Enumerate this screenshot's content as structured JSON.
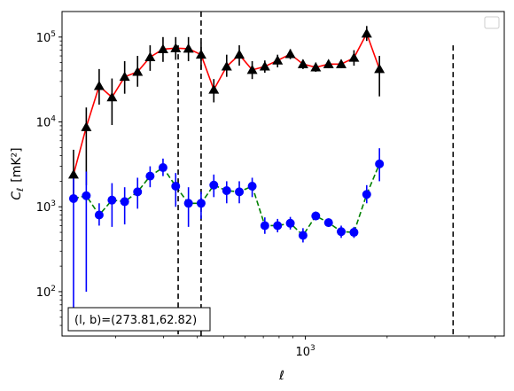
{
  "chart_data": {
    "type": "line",
    "xscale": "log",
    "yscale": "log",
    "xlabel": "ℓ",
    "ylabel_main": "C",
    "ylabel_sub": "ℓ",
    "ylabel_unit": "[mK²]",
    "xlim": [
      127,
      5400
    ],
    "ylim": [
      30,
      200000
    ],
    "x_ticks": [
      {
        "value": 1000,
        "base": "10",
        "exp": "3"
      }
    ],
    "y_ticks": [
      {
        "value": 100,
        "base": "10",
        "exp": "2"
      },
      {
        "value": 1000,
        "base": "10",
        "exp": "3"
      },
      {
        "value": 10000,
        "base": "10",
        "exp": "4"
      },
      {
        "value": 100000,
        "base": "10",
        "exp": "5"
      }
    ],
    "legend_position": "upper right",
    "legend_entries": [],
    "annotation": "(l, b)=(273.81,62.82)",
    "vlines": [
      {
        "x": 340,
        "ymin": 30,
        "ymax": 80000
      },
      {
        "x": 413,
        "ymin": 30,
        "ymax": 200000
      },
      {
        "x": 3500,
        "ymin": 30,
        "ymax": 80000
      }
    ],
    "series": [
      {
        "color": "#ff0000",
        "marker": "triangle",
        "marker_color": "#000000",
        "line_style": "solid",
        "errorbar_color": "#000000",
        "points": [
          {
            "x": 140,
            "y": 2400,
            "lo": 1400,
            "hi": 4700
          },
          {
            "x": 156,
            "y": 8700,
            "lo": 1800,
            "hi": 14800
          },
          {
            "x": 174,
            "y": 26500,
            "lo": 16000,
            "hi": 42000
          },
          {
            "x": 194,
            "y": 19500,
            "lo": 9200,
            "hi": 32500
          },
          {
            "x": 216,
            "y": 34000,
            "lo": 21500,
            "hi": 52000
          },
          {
            "x": 241,
            "y": 39000,
            "lo": 26000,
            "hi": 60000
          },
          {
            "x": 268,
            "y": 58000,
            "lo": 40000,
            "hi": 80000
          },
          {
            "x": 299,
            "y": 72000,
            "lo": 51000,
            "hi": 100000
          },
          {
            "x": 333,
            "y": 74000,
            "lo": 54000,
            "hi": 100000
          },
          {
            "x": 371,
            "y": 73000,
            "lo": 52000,
            "hi": 100000
          },
          {
            "x": 413,
            "y": 62000,
            "lo": 42000,
            "hi": 85000
          },
          {
            "x": 460,
            "y": 24000,
            "lo": 17000,
            "hi": 32000
          },
          {
            "x": 513,
            "y": 45000,
            "lo": 34000,
            "hi": 62000
          },
          {
            "x": 571,
            "y": 62000,
            "lo": 46000,
            "hi": 80000
          },
          {
            "x": 637,
            "y": 41000,
            "lo": 32000,
            "hi": 52000
          },
          {
            "x": 709,
            "y": 45000,
            "lo": 38000,
            "hi": 53000
          },
          {
            "x": 790,
            "y": 53000,
            "lo": 44000,
            "hi": 62000
          },
          {
            "x": 880,
            "y": 63000,
            "lo": 55000,
            "hi": 72000
          },
          {
            "x": 980,
            "y": 48000,
            "lo": 42000,
            "hi": 54000
          },
          {
            "x": 1092,
            "y": 44000,
            "lo": 39000,
            "hi": 50000
          },
          {
            "x": 1217,
            "y": 48000,
            "lo": 43000,
            "hi": 54000
          },
          {
            "x": 1355,
            "y": 48000,
            "lo": 43000,
            "hi": 54000
          },
          {
            "x": 1510,
            "y": 57000,
            "lo": 46000,
            "hi": 70000
          },
          {
            "x": 1682,
            "y": 110000,
            "lo": 90000,
            "hi": 135000
          },
          {
            "x": 1874,
            "y": 42000,
            "lo": 20000,
            "hi": 60000
          }
        ]
      },
      {
        "color": "#008000",
        "marker": "circle",
        "marker_color": "#0000ff",
        "line_style": "dashed",
        "errorbar_color": "#0000ff",
        "points": [
          {
            "x": 140,
            "y": 1250,
            "lo": 50,
            "hi": 2600
          },
          {
            "x": 156,
            "y": 1350,
            "lo": 100,
            "hi": 2600
          },
          {
            "x": 174,
            "y": 800,
            "lo": 600,
            "hi": 1100
          },
          {
            "x": 194,
            "y": 1200,
            "lo": 580,
            "hi": 1900
          },
          {
            "x": 216,
            "y": 1150,
            "lo": 620,
            "hi": 1700
          },
          {
            "x": 241,
            "y": 1500,
            "lo": 950,
            "hi": 2200
          },
          {
            "x": 268,
            "y": 2300,
            "lo": 1700,
            "hi": 3000
          },
          {
            "x": 299,
            "y": 2900,
            "lo": 2300,
            "hi": 3700
          },
          {
            "x": 333,
            "y": 1750,
            "lo": 1000,
            "hi": 2500
          },
          {
            "x": 371,
            "y": 1100,
            "lo": 580,
            "hi": 1700
          },
          {
            "x": 413,
            "y": 1100,
            "lo": 720,
            "hi": 1500
          },
          {
            "x": 460,
            "y": 1800,
            "lo": 1300,
            "hi": 2400
          },
          {
            "x": 513,
            "y": 1550,
            "lo": 1100,
            "hi": 2000
          },
          {
            "x": 571,
            "y": 1500,
            "lo": 1100,
            "hi": 2000
          },
          {
            "x": 637,
            "y": 1750,
            "lo": 1300,
            "hi": 2200
          },
          {
            "x": 709,
            "y": 600,
            "lo": 480,
            "hi": 750
          },
          {
            "x": 790,
            "y": 600,
            "lo": 500,
            "hi": 720
          },
          {
            "x": 880,
            "y": 640,
            "lo": 540,
            "hi": 760
          },
          {
            "x": 980,
            "y": 460,
            "lo": 380,
            "hi": 560
          },
          {
            "x": 1092,
            "y": 780,
            "lo": 700,
            "hi": 880
          },
          {
            "x": 1217,
            "y": 650,
            "lo": 580,
            "hi": 730
          },
          {
            "x": 1355,
            "y": 510,
            "lo": 430,
            "hi": 600
          },
          {
            "x": 1510,
            "y": 500,
            "lo": 430,
            "hi": 580
          },
          {
            "x": 1682,
            "y": 1400,
            "lo": 1100,
            "hi": 1800
          },
          {
            "x": 1874,
            "y": 3200,
            "lo": 2000,
            "hi": 4900
          }
        ]
      }
    ]
  }
}
